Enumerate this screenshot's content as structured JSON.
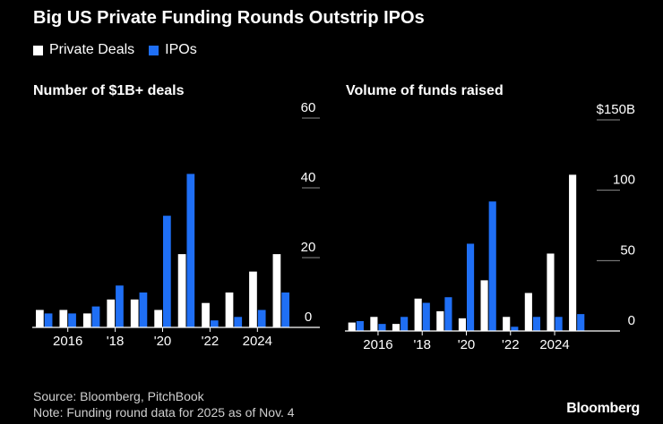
{
  "title": "Big US Private Funding Rounds Outstrip IPOs",
  "legend": [
    {
      "label": "Private Deals",
      "color": "#ffffff"
    },
    {
      "label": "IPOs",
      "color": "#1f6ff5"
    }
  ],
  "chart_data": [
    {
      "type": "bar",
      "title": "Number of $1B+ deals",
      "categories": [
        "2015",
        "2016",
        "2017",
        "2018",
        "2019",
        "2020",
        "2021",
        "2022",
        "2023",
        "2024",
        "2025"
      ],
      "tick_labels": [
        {
          "category": "2016",
          "label": "2016"
        },
        {
          "category": "2018",
          "label": "'18"
        },
        {
          "category": "2020",
          "label": "'20"
        },
        {
          "category": "2022",
          "label": "'22"
        },
        {
          "category": "2024",
          "label": "2024"
        }
      ],
      "series": [
        {
          "name": "Private Deals",
          "color": "#ffffff",
          "values": [
            5,
            5,
            4,
            8,
            8,
            5,
            21,
            7,
            10,
            16,
            21
          ]
        },
        {
          "name": "IPOs",
          "color": "#1f6ff5",
          "values": [
            4,
            4,
            6,
            12,
            10,
            32,
            44,
            2,
            3,
            5,
            10
          ]
        }
      ],
      "ylim": [
        0,
        60
      ],
      "yticks": [
        0,
        20,
        40,
        60
      ],
      "ytick_labels": [
        "0",
        "20",
        "40",
        "60"
      ]
    },
    {
      "type": "bar",
      "title": "Volume of funds raised",
      "categories": [
        "2015",
        "2016",
        "2017",
        "2018",
        "2019",
        "2020",
        "2021",
        "2022",
        "2023",
        "2024",
        "2025"
      ],
      "tick_labels": [
        {
          "category": "2016",
          "label": "2016"
        },
        {
          "category": "2018",
          "label": "'18"
        },
        {
          "category": "2020",
          "label": "'20"
        },
        {
          "category": "2022",
          "label": "'22"
        },
        {
          "category": "2024",
          "label": "2024"
        }
      ],
      "series": [
        {
          "name": "Private Deals",
          "color": "#ffffff",
          "values": [
            6,
            10,
            5,
            23,
            14,
            9,
            36,
            10,
            27,
            55,
            111
          ]
        },
        {
          "name": "IPOs",
          "color": "#1f6ff5",
          "values": [
            7,
            5,
            10,
            20,
            24,
            62,
            92,
            3,
            10,
            10,
            12
          ]
        }
      ],
      "ylim": [
        0,
        150
      ],
      "yticks": [
        0,
        50,
        100,
        150
      ],
      "ytick_labels": [
        "0",
        "50",
        "100",
        "$150B"
      ]
    }
  ],
  "footer": {
    "source": "Source: Bloomberg, PitchBook",
    "note": "Note: Funding round data for 2025 as of Nov. 4"
  },
  "brand": "Bloomberg"
}
